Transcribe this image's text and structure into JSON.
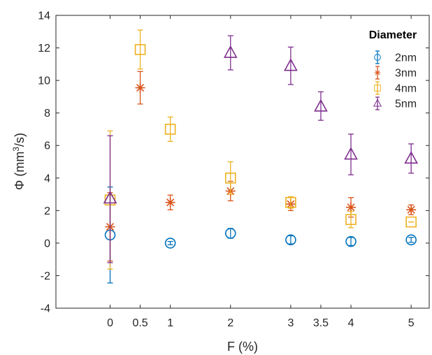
{
  "chart_data": {
    "type": "scatter",
    "title": "",
    "xlabel": "F (%)",
    "ylabel_parts": [
      "Φ (mm",
      "3",
      "/s)"
    ],
    "xlim": [
      -0.9,
      5.3
    ],
    "ylim": [
      -4,
      14
    ],
    "xticks": [
      0,
      0.5,
      1,
      2,
      3,
      3.5,
      4,
      5
    ],
    "xtick_labels": [
      "0",
      "0.5",
      "1",
      "2",
      "3",
      "3.5",
      "4",
      "5"
    ],
    "yticks": [
      -4,
      -2,
      0,
      2,
      4,
      6,
      8,
      10,
      12,
      14
    ],
    "ytick_labels": [
      "-4",
      "-2",
      "0",
      "2",
      "4",
      "6",
      "8",
      "10",
      "12",
      "14"
    ],
    "grid": false,
    "legend_title": "Diameter",
    "legend_position": "top-right",
    "series": [
      {
        "name": "2nm",
        "marker": "circle",
        "color": "#0072BD",
        "points": [
          {
            "x": 0,
            "y": 0.5,
            "lo": -2.45,
            "hi": 3.45
          },
          {
            "x": 1,
            "y": 0.0,
            "lo": -0.1,
            "hi": 0.1
          },
          {
            "x": 2,
            "y": 0.6,
            "lo": 0.3,
            "hi": 0.9
          },
          {
            "x": 3,
            "y": 0.2,
            "lo": -0.05,
            "hi": 0.45
          },
          {
            "x": 4,
            "y": 0.1,
            "lo": -0.15,
            "hi": 0.35
          },
          {
            "x": 5,
            "y": 0.2,
            "lo": 0.05,
            "hi": 0.35
          }
        ]
      },
      {
        "name": "3nm",
        "marker": "asterisk",
        "color": "#D95319",
        "points": [
          {
            "x": 0,
            "y": 1.0,
            "lo": -1.1,
            "hi": 3.1
          },
          {
            "x": 0.5,
            "y": 9.55,
            "lo": 8.55,
            "hi": 10.55
          },
          {
            "x": 1,
            "y": 2.5,
            "lo": 2.05,
            "hi": 2.95
          },
          {
            "x": 2,
            "y": 3.2,
            "lo": 2.6,
            "hi": 3.8
          },
          {
            "x": 3,
            "y": 2.4,
            "lo": 2.0,
            "hi": 2.8
          },
          {
            "x": 4,
            "y": 2.2,
            "lo": 1.6,
            "hi": 2.8
          },
          {
            "x": 5,
            "y": 2.05,
            "lo": 1.75,
            "hi": 2.35
          }
        ]
      },
      {
        "name": "4nm",
        "marker": "square",
        "color": "#EDB120",
        "points": [
          {
            "x": 0,
            "y": 2.65,
            "lo": -1.6,
            "hi": 6.9
          },
          {
            "x": 0.5,
            "y": 11.9,
            "lo": 10.7,
            "hi": 13.1
          },
          {
            "x": 1,
            "y": 7.0,
            "lo": 6.25,
            "hi": 7.75
          },
          {
            "x": 2,
            "y": 4.0,
            "lo": 3.0,
            "hi": 5.0
          },
          {
            "x": 3,
            "y": 2.5,
            "lo": 2.15,
            "hi": 2.85
          },
          {
            "x": 4,
            "y": 1.45,
            "lo": 0.95,
            "hi": 1.95
          },
          {
            "x": 5,
            "y": 1.3,
            "lo": 1.3,
            "hi": 1.3
          }
        ]
      },
      {
        "name": "5nm",
        "marker": "triangle",
        "color": "#7E2F8E",
        "points": [
          {
            "x": 0,
            "y": 2.75,
            "lo": -1.2,
            "hi": 6.6
          },
          {
            "x": 2,
            "y": 11.7,
            "lo": 10.65,
            "hi": 12.75
          },
          {
            "x": 3,
            "y": 10.9,
            "lo": 9.75,
            "hi": 12.05
          },
          {
            "x": 3.5,
            "y": 8.4,
            "lo": 7.55,
            "hi": 9.3
          },
          {
            "x": 4,
            "y": 5.45,
            "lo": 4.2,
            "hi": 6.7
          },
          {
            "x": 5,
            "y": 5.2,
            "lo": 4.3,
            "hi": 6.1
          }
        ]
      }
    ]
  }
}
